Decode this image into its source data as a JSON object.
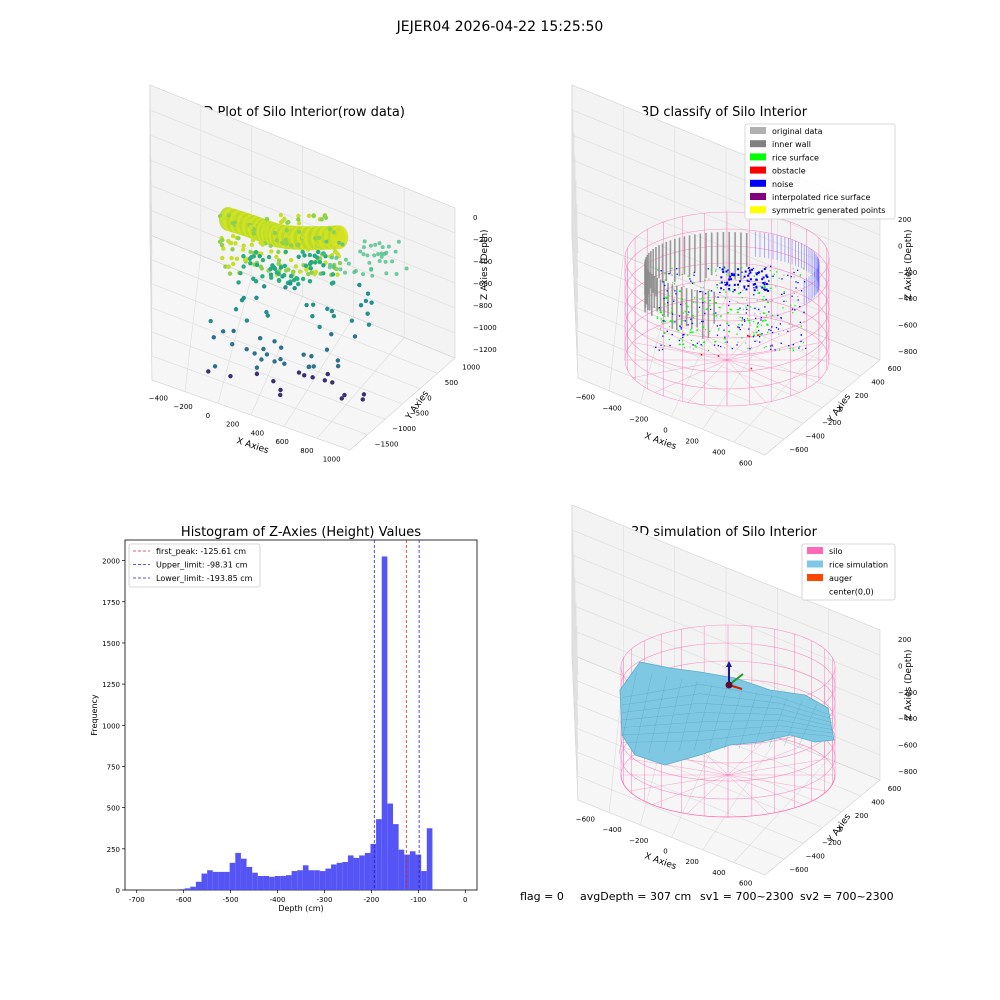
{
  "suptitle": "JEJER04 2026-04-22 15:25:50",
  "status_line": {
    "flag": "flag = 0",
    "avg_depth": "avgDepth = 307 cm",
    "sv1": "sv1 = 700~2300",
    "sv2": "sv2 = 700~2300"
  },
  "colors": {
    "hist_bar": "#4c4cf5",
    "peak_line": "#d62728",
    "limit_line": "#1f1fcc",
    "pane": "#f2f2f2",
    "silo_wire": "#ff69b4",
    "rice_fill": "#7ec8e3",
    "raw_high": "#e0e61a",
    "raw_mid": "#2ab07f",
    "raw_low": "#3b2e73"
  },
  "chart_data": [
    {
      "type": "scatter",
      "projection": "3d",
      "title": "3D Plot of Silo Interior(row data)",
      "xlabel": "X Axies",
      "ylabel": "Y Axies",
      "zlabel": "Z Axies (Depth)",
      "x_ticks": [
        "−400",
        "−200",
        "0",
        "200",
        "400",
        "600",
        "800",
        "1000"
      ],
      "y_ticks": [
        "1000",
        "500",
        "0",
        "−500",
        "−1000",
        "−1500"
      ],
      "z_ticks": [
        "0",
        "−200",
        "−400",
        "−600",
        "−800",
        "−1000",
        "−1200"
      ],
      "xlim": [
        -500,
        1100
      ],
      "ylim": [
        -1600,
        1200
      ],
      "zlim": [
        -1350,
        50
      ],
      "colormap": "viridis"
    },
    {
      "type": "scatter",
      "projection": "3d",
      "title": "3D classify of Silo Interior",
      "xlabel": "X Axies",
      "ylabel": "Y Axies",
      "zlabel": "Z Axies (Depth)",
      "x_ticks": [
        "−600",
        "−400",
        "−200",
        "0",
        "200",
        "400",
        "600"
      ],
      "y_ticks": [
        "600",
        "400",
        "200",
        "0",
        "−200",
        "−400",
        "−600"
      ],
      "z_ticks": [
        "200",
        "0",
        "−200",
        "−400",
        "−600",
        "−800"
      ],
      "legend_position": "top-right",
      "legend": [
        {
          "label": "original data",
          "color": "#b0b0b0"
        },
        {
          "label": "inner wall",
          "color": "#808080"
        },
        {
          "label": "rice surface",
          "color": "#00ff00"
        },
        {
          "label": "obstacle",
          "color": "#ff0000"
        },
        {
          "label": "noise",
          "color": "#0000ff"
        },
        {
          "label": "interpolated rice surface",
          "color": "#800080"
        },
        {
          "label": "symmetric generated points",
          "color": "#ffff00"
        }
      ]
    },
    {
      "type": "bar",
      "title": "Histogram of Z-Axies (Height) Values",
      "xlabel": "Depth (cm)",
      "ylabel": "Frequency",
      "xlim": [
        -725,
        25
      ],
      "ylim": [
        0,
        2125
      ],
      "x_ticks": [
        -700,
        -600,
        -500,
        -400,
        -300,
        -200,
        -100,
        0
      ],
      "y_ticks": [
        0,
        250,
        500,
        750,
        1000,
        1250,
        1500,
        1750,
        2000
      ],
      "grid": false,
      "legend_position": "top-left",
      "bin_width": 12,
      "bins": [
        {
          "start": -610,
          "count": 5
        },
        {
          "start": -598,
          "count": 10
        },
        {
          "start": -586,
          "count": 20
        },
        {
          "start": -574,
          "count": 50
        },
        {
          "start": -562,
          "count": 100
        },
        {
          "start": -550,
          "count": 120
        },
        {
          "start": -538,
          "count": 110
        },
        {
          "start": -526,
          "count": 110
        },
        {
          "start": -514,
          "count": 110
        },
        {
          "start": -502,
          "count": 165
        },
        {
          "start": -490,
          "count": 225
        },
        {
          "start": -478,
          "count": 190
        },
        {
          "start": -466,
          "count": 140
        },
        {
          "start": -454,
          "count": 105
        },
        {
          "start": -442,
          "count": 85
        },
        {
          "start": -430,
          "count": 85
        },
        {
          "start": -418,
          "count": 80
        },
        {
          "start": -406,
          "count": 85
        },
        {
          "start": -394,
          "count": 85
        },
        {
          "start": -382,
          "count": 90
        },
        {
          "start": -370,
          "count": 115
        },
        {
          "start": -358,
          "count": 120
        },
        {
          "start": -346,
          "count": 150
        },
        {
          "start": -334,
          "count": 120
        },
        {
          "start": -322,
          "count": 120
        },
        {
          "start": -310,
          "count": 115
        },
        {
          "start": -298,
          "count": 130
        },
        {
          "start": -286,
          "count": 155
        },
        {
          "start": -274,
          "count": 165
        },
        {
          "start": -262,
          "count": 170
        },
        {
          "start": -250,
          "count": 210
        },
        {
          "start": -238,
          "count": 195
        },
        {
          "start": -226,
          "count": 210
        },
        {
          "start": -214,
          "count": 225
        },
        {
          "start": -202,
          "count": 280
        },
        {
          "start": -190,
          "count": 430
        },
        {
          "start": -178,
          "count": 2025
        },
        {
          "start": -166,
          "count": 525
        },
        {
          "start": -154,
          "count": 400
        },
        {
          "start": -142,
          "count": 245
        },
        {
          "start": -130,
          "count": 215
        },
        {
          "start": -118,
          "count": 235
        },
        {
          "start": -106,
          "count": 215
        },
        {
          "start": -94,
          "count": 115
        },
        {
          "start": -82,
          "count": 375
        }
      ],
      "lines": [
        {
          "label": "first_peak: -125.61 cm",
          "x": -125.61,
          "style": "red-dashed"
        },
        {
          "label": "Upper_limit: -98.31 cm",
          "x": -98.31,
          "style": "blue-dashed"
        },
        {
          "label": "Lower_limit: -193.85 cm",
          "x": -193.85,
          "style": "blue-dashed"
        }
      ]
    },
    {
      "type": "surface",
      "projection": "3d",
      "title": "3D simulation of Silo Interior",
      "xlabel": "X Axies",
      "ylabel": "Y Axies",
      "zlabel": "Z Axies (Depth)",
      "x_ticks": [
        "−600",
        "−400",
        "−200",
        "0",
        "200",
        "400",
        "600"
      ],
      "y_ticks": [
        "600",
        "400",
        "200",
        "0",
        "−200",
        "−400",
        "−600"
      ],
      "z_ticks": [
        "200",
        "0",
        "−200",
        "−400",
        "−600",
        "−800"
      ],
      "legend_position": "top-right",
      "legend": [
        {
          "label": "silo",
          "color": "#ff69b4"
        },
        {
          "label": "rice simulation",
          "color": "#7ec8e3"
        },
        {
          "label": "auger",
          "color": "#ff4500"
        },
        {
          "label": "center(0,0)",
          "color": ""
        }
      ]
    }
  ]
}
